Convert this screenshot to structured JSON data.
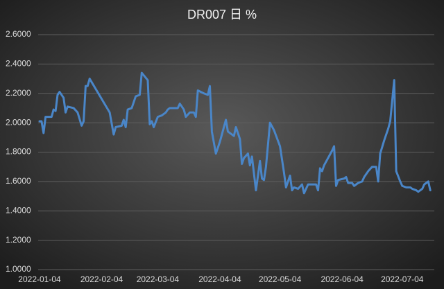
{
  "chart_data": {
    "type": "line",
    "title": "DR007 日 %",
    "x": [
      "2022-01-04",
      "2022-01-05",
      "2022-01-06",
      "2022-01-07",
      "2022-01-10",
      "2022-01-11",
      "2022-01-12",
      "2022-01-13",
      "2022-01-14",
      "2022-01-16",
      "2022-01-17",
      "2022-01-18",
      "2022-01-21",
      "2022-01-23",
      "2022-01-25",
      "2022-01-26",
      "2022-01-27",
      "2022-01-28",
      "2022-01-29",
      "2022-02-08",
      "2022-02-10",
      "2022-02-11",
      "2022-02-14",
      "2022-02-15",
      "2022-02-16",
      "2022-02-17",
      "2022-02-19",
      "2022-02-21",
      "2022-02-23",
      "2022-02-24",
      "2022-02-27",
      "2022-02-28",
      "2022-03-01",
      "2022-03-02",
      "2022-03-04",
      "2022-03-06",
      "2022-03-08",
      "2022-03-09",
      "2022-03-10",
      "2022-03-12",
      "2022-03-14",
      "2022-03-15",
      "2022-03-17",
      "2022-03-18",
      "2022-03-20",
      "2022-03-22",
      "2022-03-23",
      "2022-03-24",
      "2022-03-27",
      "2022-03-29",
      "2022-03-30",
      "2022-03-31",
      "2022-04-02",
      "2022-04-04",
      "2022-04-07",
      "2022-04-08",
      "2022-04-11",
      "2022-04-12",
      "2022-04-14",
      "2022-04-15",
      "2022-04-16",
      "2022-04-18",
      "2022-04-19",
      "2022-04-20",
      "2022-04-22",
      "2022-04-24",
      "2022-04-25",
      "2022-04-26",
      "2022-04-27",
      "2022-04-29",
      "2022-05-01",
      "2022-05-04",
      "2022-05-06",
      "2022-05-07",
      "2022-05-09",
      "2022-05-10",
      "2022-05-11",
      "2022-05-13",
      "2022-05-15",
      "2022-05-16",
      "2022-05-18",
      "2022-05-20",
      "2022-05-22",
      "2022-05-23",
      "2022-05-24",
      "2022-05-25",
      "2022-05-26",
      "2022-05-30",
      "2022-05-31",
      "2022-06-01",
      "2022-06-02",
      "2022-06-05",
      "2022-06-06",
      "2022-06-07",
      "2022-06-09",
      "2022-06-10",
      "2022-06-12",
      "2022-06-14",
      "2022-06-15",
      "2022-06-16",
      "2022-06-17",
      "2022-06-19",
      "2022-06-21",
      "2022-06-22",
      "2022-06-23",
      "2022-06-25",
      "2022-06-27",
      "2022-06-28",
      "2022-06-30",
      "2022-07-01",
      "2022-07-03",
      "2022-07-04",
      "2022-07-06",
      "2022-07-08",
      "2022-07-09",
      "2022-07-11",
      "2022-07-12",
      "2022-07-14",
      "2022-07-15",
      "2022-07-17",
      "2022-07-18"
    ],
    "values": [
      2.01,
      2.01,
      1.93,
      2.04,
      2.04,
      2.09,
      2.08,
      2.19,
      2.21,
      2.17,
      2.07,
      2.11,
      2.1,
      2.07,
      1.98,
      2.01,
      2.25,
      2.25,
      2.3,
      2.07,
      1.92,
      1.97,
      1.98,
      2.02,
      1.97,
      2.09,
      2.1,
      2.18,
      2.19,
      2.34,
      2.29,
      1.99,
      2.01,
      1.97,
      2.04,
      2.05,
      2.07,
      2.09,
      2.1,
      2.1,
      2.1,
      2.13,
      2.09,
      2.04,
      2.07,
      2.07,
      2.04,
      2.22,
      2.2,
      2.19,
      2.25,
      1.94,
      1.79,
      1.87,
      2.02,
      1.94,
      1.91,
      1.97,
      1.89,
      1.72,
      1.76,
      1.79,
      1.71,
      1.77,
      1.54,
      1.74,
      1.62,
      1.61,
      1.7,
      2.0,
      1.95,
      1.84,
      1.66,
      1.56,
      1.64,
      1.54,
      1.56,
      1.55,
      1.58,
      1.52,
      1.58,
      1.58,
      1.58,
      1.54,
      1.69,
      1.67,
      1.71,
      1.81,
      1.84,
      1.57,
      1.61,
      1.62,
      1.63,
      1.59,
      1.59,
      1.57,
      1.59,
      1.6,
      1.63,
      1.65,
      1.67,
      1.7,
      1.7,
      1.6,
      1.79,
      1.88,
      1.96,
      2.01,
      2.29,
      1.67,
      1.6,
      1.57,
      1.56,
      1.56,
      1.55,
      1.54,
      1.53,
      1.55,
      1.58,
      1.6,
      1.54
    ],
    "color": "#4a86c8",
    "xlim": [
      "2022-01-04",
      "2022-07-20"
    ],
    "xticks": [
      "2022-01-04",
      "2022-02-04",
      "2022-03-04",
      "2022-04-04",
      "2022-05-04",
      "2022-06-04",
      "2022-07-04"
    ],
    "ylim": [
      1,
      2.6
    ],
    "yticks": [
      {
        "value": 1,
        "label": "1.0000"
      },
      {
        "value": 1.2,
        "label": "1.2000"
      },
      {
        "value": 1.4,
        "label": "1.4000"
      },
      {
        "value": 1.6,
        "label": "1.6000"
      },
      {
        "value": 1.8,
        "label": "1.8000"
      },
      {
        "value": 2,
        "label": "2.0000"
      },
      {
        "value": 2.2,
        "label": "2.2000"
      },
      {
        "value": 2.4,
        "label": "2.4000"
      },
      {
        "value": 2.6,
        "label": "2.6000"
      }
    ],
    "grid": true
  }
}
